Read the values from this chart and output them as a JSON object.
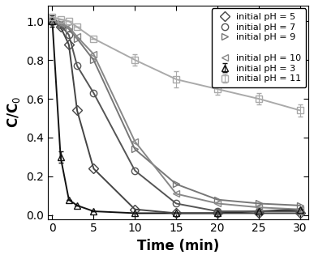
{
  "title": "",
  "xlabel": "Time (min)",
  "ylabel": "C/C$_0$",
  "xlim": [
    -0.5,
    31
  ],
  "ylim": [
    -0.02,
    1.08
  ],
  "xticks": [
    0,
    5,
    10,
    15,
    20,
    25,
    30
  ],
  "yticks": [
    0.0,
    0.2,
    0.4,
    0.6,
    0.8,
    1.0
  ],
  "series": [
    {
      "label": "initial pH = 3",
      "color": "#111111",
      "marker": "^",
      "markersize": 6,
      "linewidth": 1.4,
      "x": [
        0,
        1,
        2,
        3,
        5,
        10,
        15,
        20,
        25,
        30
      ],
      "y": [
        1.0,
        0.3,
        0.08,
        0.05,
        0.02,
        0.01,
        0.01,
        0.01,
        0.02,
        0.03
      ],
      "errorbars": [
        0.03,
        0.03,
        0,
        0,
        0,
        0,
        0,
        0,
        0,
        0
      ],
      "fillstyle": "none"
    },
    {
      "label": "initial pH = 5",
      "color": "#444444",
      "marker": "D",
      "markersize": 6,
      "linewidth": 1.4,
      "x": [
        0,
        1,
        2,
        3,
        5,
        10,
        15,
        20,
        25,
        30
      ],
      "y": [
        1.0,
        0.97,
        0.88,
        0.54,
        0.24,
        0.03,
        0.01,
        0.01,
        0.01,
        0.01
      ],
      "fillstyle": "none"
    },
    {
      "label": "initial pH = 7",
      "color": "#555555",
      "marker": "o",
      "markersize": 6,
      "linewidth": 1.4,
      "x": [
        0,
        1,
        2,
        3,
        5,
        10,
        15,
        20,
        25,
        30
      ],
      "y": [
        1.0,
        0.98,
        0.93,
        0.77,
        0.63,
        0.23,
        0.06,
        0.02,
        0.02,
        0.02
      ],
      "fillstyle": "none"
    },
    {
      "label": "initial pH = 9",
      "color": "#777777",
      "marker": ">",
      "markersize": 6,
      "linewidth": 1.4,
      "x": [
        0,
        1,
        2,
        3,
        5,
        10,
        15,
        20,
        25,
        30
      ],
      "y": [
        1.0,
        0.99,
        0.96,
        0.91,
        0.8,
        0.34,
        0.16,
        0.08,
        0.06,
        0.05
      ],
      "fillstyle": "none"
    },
    {
      "label": "initial pH = 10",
      "color": "#888888",
      "marker": "<",
      "markersize": 6,
      "linewidth": 1.4,
      "x": [
        0,
        1,
        2,
        3,
        5,
        10,
        15,
        20,
        25,
        30
      ],
      "y": [
        1.0,
        0.99,
        0.97,
        0.92,
        0.83,
        0.38,
        0.11,
        0.06,
        0.04,
        0.03
      ],
      "fillstyle": "none"
    },
    {
      "label": "initial pH = 11",
      "color": "#aaaaaa",
      "marker": "s",
      "markersize": 6,
      "linewidth": 1.4,
      "x": [
        0,
        1,
        2,
        3,
        5,
        10,
        15,
        20,
        25,
        30
      ],
      "y": [
        1.02,
        1.01,
        1.0,
        0.97,
        0.91,
        0.8,
        0.7,
        0.65,
        0.6,
        0.54
      ],
      "errorbars": [
        0,
        0,
        0,
        0,
        0,
        0.03,
        0.04,
        0.03,
        0.03,
        0.03
      ],
      "fillstyle": "none"
    }
  ],
  "legend_loc": "upper right",
  "legend_fontsize": 8.0,
  "axis_fontsize": 12,
  "tick_fontsize": 10
}
